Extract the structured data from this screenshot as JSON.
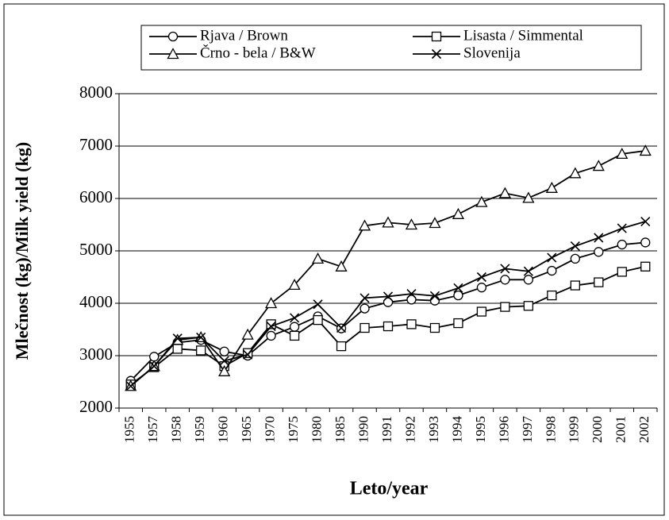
{
  "chart_data": {
    "type": "line",
    "x_label": "Leto/year",
    "y_label": "Mlečnost (kg)/Milk yield (kg)",
    "categories": [
      "1955",
      "1957",
      "1958",
      "1959",
      "1960",
      "1965",
      "1970",
      "1975",
      "1980",
      "1985",
      "1990",
      "1991",
      "1992",
      "1993",
      "1994",
      "1995",
      "1996",
      "1997",
      "1998",
      "1999",
      "2000",
      "2001",
      "2002"
    ],
    "series": [
      {
        "name": "Rjava / Brown",
        "color": "#000000",
        "marker": "circle",
        "values": [
          2520,
          2980,
          3250,
          3300,
          3080,
          3000,
          3380,
          3550,
          3750,
          3520,
          3900,
          4020,
          4070,
          4050,
          4150,
          4300,
          4450,
          4450,
          4620,
          4850,
          4980,
          5120,
          5160
        ]
      },
      {
        "name": "Lisasta / Simmental",
        "color": "#000000",
        "marker": "square",
        "values": [
          2450,
          2780,
          3130,
          3100,
          2800,
          3050,
          3600,
          3380,
          3680,
          3180,
          3530,
          3560,
          3600,
          3530,
          3620,
          3840,
          3930,
          3950,
          4150,
          4340,
          4400,
          4600,
          4700
        ]
      },
      {
        "name": "Črno - bela / B&W",
        "color": "#000000",
        "marker": "triangle",
        "values": [
          2420,
          2800,
          3300,
          3350,
          2700,
          3400,
          4000,
          4350,
          4850,
          4700,
          5480,
          5540,
          5500,
          5530,
          5700,
          5930,
          6100,
          6010,
          6200,
          6480,
          6620,
          6850,
          6910
        ]
      },
      {
        "name": "Slovenija",
        "color": "#000000",
        "marker": "x",
        "values": [
          2420,
          2800,
          3330,
          3350,
          2900,
          3020,
          3560,
          3720,
          3980,
          3530,
          4100,
          4130,
          4180,
          4140,
          4290,
          4500,
          4660,
          4610,
          4870,
          5090,
          5250,
          5430,
          5560
        ]
      }
    ],
    "ylim": [
      2000,
      8000
    ],
    "yticks": [
      2000,
      3000,
      4000,
      5000,
      6000,
      7000,
      8000
    ],
    "grid": true,
    "legend": "top"
  }
}
